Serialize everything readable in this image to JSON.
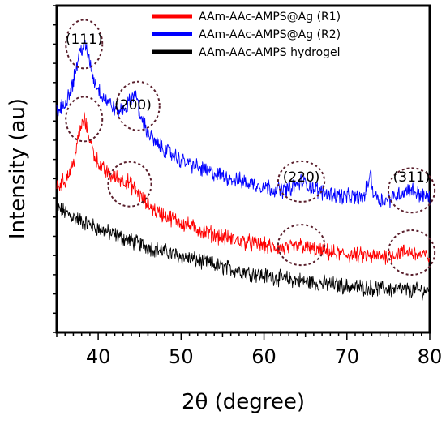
{
  "chart_data": {
    "type": "line",
    "xlabel": "2θ (degree)",
    "ylabel": "Intensity (au)",
    "xlim": [
      35,
      80
    ],
    "x_ticks": [
      "40",
      "50",
      "60",
      "70",
      "80"
    ],
    "y_ticks_labeled": false,
    "grid": false,
    "legend_position": "top-right",
    "series": [
      {
        "name": "AAm-AAc-AMPS@Ag (R1)",
        "color": "#ff0000",
        "x": [
          35,
          36,
          37,
          37.8,
          38.3,
          38.8,
          39.5,
          40.5,
          41.5,
          42.5,
          43.5,
          44.5,
          45.5,
          47,
          50,
          53,
          56,
          59,
          62,
          63.5,
          64.5,
          65.5,
          67,
          70,
          73,
          75,
          76.5,
          77.5,
          78.5,
          80
        ],
        "y": [
          152,
          158,
          175,
          210,
          222,
          208,
          185,
          170,
          163,
          160,
          157,
          148,
          137,
          126,
          114,
          104,
          97,
          92,
          87,
          88,
          91,
          87,
          84,
          81,
          79,
          80,
          83,
          84,
          81,
          79
        ]
      },
      {
        "name": "AAm-AAc-AMPS@Ag (R2)",
        "color": "#0000ff",
        "x": [
          35,
          36,
          37,
          37.8,
          38.3,
          38.8,
          39.5,
          40.5,
          41.5,
          42.5,
          43.5,
          44,
          44.5,
          45,
          46,
          47,
          50,
          53,
          56,
          59,
          62,
          63.5,
          64.5,
          65.5,
          67,
          70,
          72,
          72.5,
          72.8,
          73.2,
          74,
          75,
          76.5,
          77.5,
          78.5,
          80
        ],
        "y": [
          228,
          238,
          262,
          292,
          300,
          288,
          262,
          246,
          237,
          230,
          235,
          244,
          250,
          226,
          208,
          196,
          179,
          168,
          160,
          154,
          148,
          151,
          157,
          152,
          146,
          141,
          140,
          153,
          167,
          145,
          138,
          138,
          145,
          149,
          145,
          139
        ]
      },
      {
        "name": "AAm-AAc-AMPS hydrogel",
        "color": "#000000",
        "x": [
          35,
          37,
          40,
          43,
          46,
          50,
          55,
          60,
          65,
          70,
          75,
          80
        ],
        "y": [
          130,
          120,
          108,
          98,
          89,
          79,
          68,
          59,
          53,
          48,
          45,
          43
        ]
      }
    ],
    "annotations": [
      {
        "label": "(111)",
        "x": 38.3
      },
      {
        "label": "(200)",
        "x": 44.2
      },
      {
        "label": "(220)",
        "x": 64.5
      },
      {
        "label": "(311)",
        "x": 77.5
      }
    ]
  }
}
